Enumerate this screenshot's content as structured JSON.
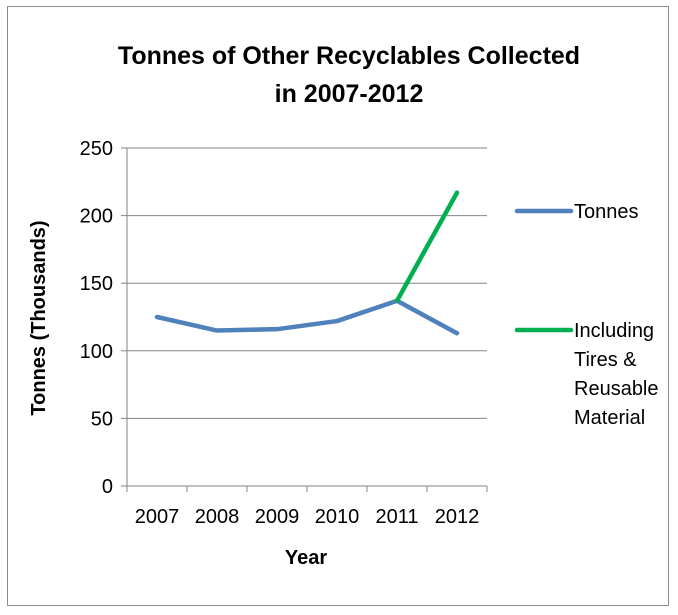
{
  "chart_data": {
    "type": "line",
    "title_lines": [
      "Tonnes of Other Recyclables Collected",
      "in 2007-2012"
    ],
    "xlabel": "Year",
    "ylabel": "Tonnes (Thousands)",
    "categories": [
      "2007",
      "2008",
      "2009",
      "2010",
      "2011",
      "2012"
    ],
    "ylim": [
      0,
      250
    ],
    "yticks": [
      "0",
      "50",
      "100",
      "150",
      "200",
      "250"
    ],
    "grid": true,
    "legend_position": "right",
    "series": [
      {
        "name": "Tonnes",
        "legend_lines": [
          "Tonnes"
        ],
        "color": "#4f81bd",
        "values": [
          125,
          115,
          116,
          122,
          137,
          113
        ]
      },
      {
        "name": "Including Tires & Reusable Material",
        "legend_lines": [
          "Including",
          "Tires &",
          "Reusable",
          "Material"
        ],
        "color": "#00b050",
        "values": [
          null,
          null,
          null,
          null,
          137,
          217
        ]
      }
    ]
  }
}
